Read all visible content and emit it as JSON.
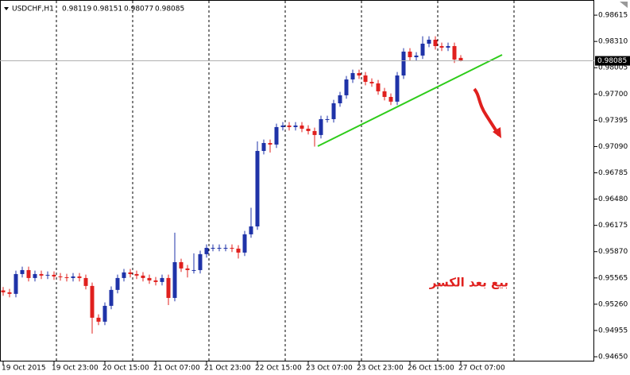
{
  "chart_data": {
    "type": "candlestick",
    "symbol": "USDCHF,H1",
    "annotation": "بيع بعد الكسر",
    "up_color": "#1f33a8",
    "down_color": "#e0201e",
    "grid": false,
    "ylim": [
      0.94595,
      0.98791
    ],
    "yticks": [
      0.98615,
      {
        "value": 0.9831,
        "label": "0.98310"
      },
      0.98005,
      {
        "value": 0.977,
        "label": "0.97700"
      },
      0.97395,
      {
        "value": 0.9709,
        "label": "0.97090"
      },
      0.96785,
      {
        "value": 0.9648,
        "label": "0.96480"
      },
      0.96175,
      {
        "value": 0.9587,
        "label": "0.95870"
      },
      0.95565,
      {
        "value": 0.9526,
        "label": "0.95260"
      },
      0.94955,
      {
        "value": 0.9465,
        "label": "0.94650"
      }
    ],
    "categories": [
      "19 Oct 2015",
      null,
      null,
      null,
      null,
      null,
      null,
      null,
      "19 Oct 23:00",
      null,
      null,
      null,
      null,
      null,
      null,
      null,
      "20 Oct 15:00",
      null,
      null,
      null,
      null,
      null,
      null,
      null,
      "21 Oct 07:00",
      null,
      null,
      null,
      null,
      null,
      null,
      null,
      "21 Oct 23:00",
      null,
      null,
      null,
      null,
      null,
      null,
      null,
      "22 Oct 15:00",
      null,
      null,
      null,
      null,
      null,
      null,
      null,
      "23 Oct 07:00",
      null,
      null,
      null,
      null,
      null,
      null,
      null,
      "23 Oct 23:00",
      null,
      null,
      null,
      null,
      null,
      null,
      null,
      "26 Oct 15:00",
      null,
      null,
      null,
      null,
      null,
      null,
      null,
      "27 Oct 07:00"
    ],
    "open": [
      0.9542,
      0.95398,
      0.9538,
      0.9561,
      0.95656,
      0.95564,
      0.9561,
      0.95592,
      0.95601,
      0.95582,
      0.95573,
      0.95564,
      0.95582,
      0.95564,
      0.95472,
      0.95103,
      0.95057,
      0.95241,
      0.95426,
      0.95564,
      0.95629,
      0.9561,
      0.95592,
      0.95564,
      0.95536,
      0.95518,
      0.95564,
      0.95333,
      0.95748,
      0.95675,
      0.95656,
      0.95656,
      0.95841,
      0.95914,
      0.95914,
      0.95914,
      0.95914,
      0.95905,
      0.95859,
      0.96071,
      0.96163,
      0.97039,
      0.97131,
      0.97113,
      0.97316,
      0.97334,
      0.97316,
      0.97334,
      0.97297,
      0.9727,
      0.97224,
      0.97408,
      0.97408,
      0.97592,
      0.97685,
      0.97869,
      0.97943,
      0.97915,
      0.97841,
      0.97823,
      0.97731,
      0.97666,
      0.97611,
      0.97915,
      0.98192,
      0.98127,
      0.98146,
      0.98284,
      0.9833,
      0.98256,
      0.98238,
      0.98256,
      0.98119
    ],
    "high": [
      0.9546,
      0.95438,
      0.9565,
      0.95696,
      0.95696,
      0.9565,
      0.9565,
      0.95641,
      0.95641,
      0.95622,
      0.95613,
      0.95622,
      0.95622,
      0.95604,
      0.95512,
      0.95143,
      0.95281,
      0.95466,
      0.95604,
      0.95669,
      0.95669,
      0.9565,
      0.95632,
      0.95604,
      0.95576,
      0.95604,
      0.95604,
      0.9609,
      0.95788,
      0.95715,
      0.9585,
      0.95881,
      0.95954,
      0.95954,
      0.95954,
      0.95954,
      0.95954,
      0.95945,
      0.96111,
      0.9638,
      0.9715,
      0.97171,
      0.97171,
      0.97356,
      0.97374,
      0.97374,
      0.97374,
      0.97374,
      0.97337,
      0.9731,
      0.97448,
      0.97448,
      0.97632,
      0.97725,
      0.97909,
      0.97983,
      0.97983,
      0.97955,
      0.97881,
      0.97863,
      0.97771,
      0.97706,
      0.97955,
      0.98232,
      0.98232,
      0.98186,
      0.9837,
      0.9837,
      0.9837,
      0.98296,
      0.98296,
      0.98296,
      0.98151
    ],
    "low": [
      0.95358,
      0.9534,
      0.9534,
      0.9557,
      0.95524,
      0.95524,
      0.95552,
      0.95552,
      0.95542,
      0.95533,
      0.95524,
      0.95524,
      0.95524,
      0.95432,
      0.94919,
      0.95017,
      0.95017,
      0.95201,
      0.95386,
      0.95524,
      0.9557,
      0.95552,
      0.95524,
      0.95496,
      0.95478,
      0.95478,
      0.9525,
      0.95293,
      0.95635,
      0.9557,
      0.95616,
      0.95616,
      0.95801,
      0.95874,
      0.95874,
      0.95874,
      0.95865,
      0.9579,
      0.95819,
      0.96031,
      0.96123,
      0.96999,
      0.9702,
      0.97073,
      0.97276,
      0.97276,
      0.97276,
      0.97257,
      0.9723,
      0.9709,
      0.97184,
      0.97368,
      0.97368,
      0.97552,
      0.97645,
      0.97829,
      0.97875,
      0.97801,
      0.97783,
      0.97691,
      0.97626,
      0.97571,
      0.97571,
      0.97875,
      0.98087,
      0.98087,
      0.98106,
      0.98244,
      0.98216,
      0.98198,
      0.98198,
      0.9806,
      0.98077
    ],
    "close": [
      0.95398,
      0.9538,
      0.9561,
      0.95656,
      0.95564,
      0.9561,
      0.95592,
      0.95601,
      0.95582,
      0.95573,
      0.95564,
      0.95582,
      0.95564,
      0.95472,
      0.95103,
      0.95057,
      0.95241,
      0.95426,
      0.95564,
      0.95629,
      0.9561,
      0.95592,
      0.95564,
      0.95536,
      0.95518,
      0.95564,
      0.95333,
      0.95748,
      0.95675,
      0.95656,
      0.95656,
      0.95841,
      0.95914,
      0.95914,
      0.95914,
      0.95914,
      0.95905,
      0.95859,
      0.96071,
      0.96163,
      0.97039,
      0.97131,
      0.97113,
      0.97316,
      0.97334,
      0.97316,
      0.97334,
      0.97297,
      0.9727,
      0.97224,
      0.97408,
      0.97408,
      0.97592,
      0.97685,
      0.97869,
      0.97943,
      0.97915,
      0.97841,
      0.97823,
      0.97731,
      0.97666,
      0.97611,
      0.97915,
      0.98192,
      0.98127,
      0.98146,
      0.98284,
      0.9833,
      0.98256,
      0.98238,
      0.98256,
      0.981,
      0.98085
    ]
  }
}
